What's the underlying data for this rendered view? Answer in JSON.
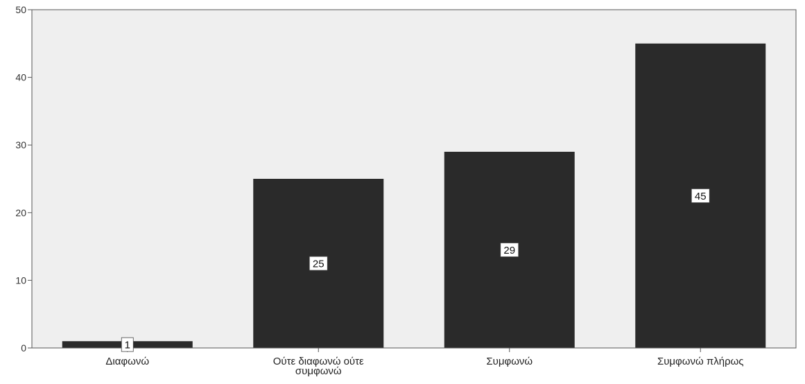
{
  "chart_data": {
    "type": "bar",
    "categories": [
      [
        "Διαφωνώ"
      ],
      [
        "Ούτε διαφωνώ ούτε",
        "συμφωνώ"
      ],
      [
        "Συμφωνώ"
      ],
      [
        "Συμφωνώ πλήρως"
      ]
    ],
    "values": [
      1,
      25,
      29,
      45
    ],
    "data_labels": [
      "1",
      "25",
      "29",
      "45"
    ],
    "ylim": [
      0,
      50
    ],
    "yticks": [
      0,
      10,
      20,
      30,
      40,
      50
    ],
    "ytick_labels": [
      "0",
      "10",
      "20",
      "30",
      "40",
      "50"
    ],
    "title": "",
    "xlabel": "",
    "ylabel": "",
    "grid": false,
    "legend": "none",
    "colors": {
      "bar": "#2a2a2a",
      "plot_background": "#efefef",
      "axis": "#555555",
      "label_box": "#ffffff"
    }
  }
}
